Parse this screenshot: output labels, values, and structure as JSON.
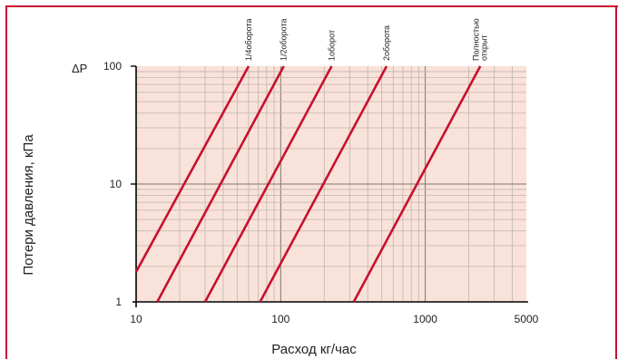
{
  "colors": {
    "border": "#c8102e",
    "plot_bg": "#f9e2d9",
    "grid_minor": "#c2b4ae",
    "grid_major": "#7f7470",
    "axis": "#000000",
    "curve": "#c8102e"
  },
  "chart_data": {
    "type": "line",
    "title": "",
    "xlabel": "Расход кг/час",
    "ylabel": "Потери давления, кПа",
    "y_axis_symbol": "ΔP",
    "x_scale": "log",
    "y_scale": "log",
    "xlim": [
      10,
      5000
    ],
    "ylim": [
      1,
      100
    ],
    "x_ticks": [
      {
        "value": 10,
        "label": "10"
      },
      {
        "value": 100,
        "label": "100"
      },
      {
        "value": 1000,
        "label": "1000"
      },
      {
        "value": 5000,
        "label": "5000"
      }
    ],
    "y_ticks": [
      {
        "value": 1,
        "label": "1"
      },
      {
        "value": 10,
        "label": "10"
      },
      {
        "value": 100,
        "label": "100"
      }
    ],
    "grid": true,
    "series": [
      {
        "name": "1/4оборота",
        "x": [
          10,
          60
        ],
        "y": [
          1.8,
          100
        ]
      },
      {
        "name": "1/2оборота",
        "x": [
          14,
          105
        ],
        "y": [
          1,
          100
        ]
      },
      {
        "name": "1оборот",
        "x": [
          30,
          225
        ],
        "y": [
          1,
          100
        ]
      },
      {
        "name": "2оборота",
        "x": [
          72,
          540
        ],
        "y": [
          1,
          100
        ]
      },
      {
        "name": "Полностью открыт",
        "x": [
          320,
          2400
        ],
        "y": [
          1,
          100
        ]
      }
    ]
  }
}
